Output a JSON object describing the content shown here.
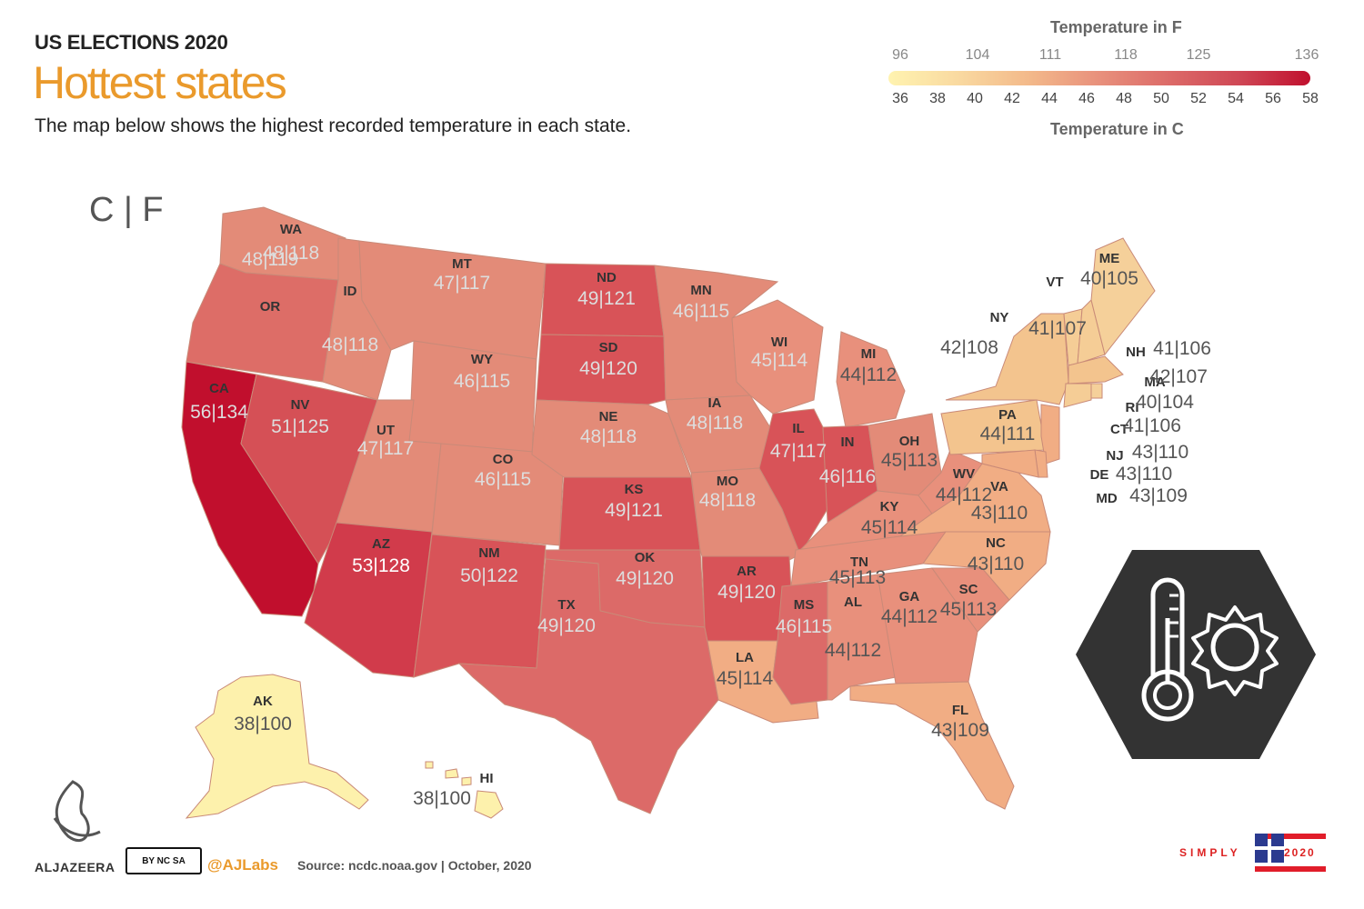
{
  "header": {
    "kicker": "US ELECTIONS 2020",
    "title": "Hottest states",
    "subtitle": "The map below shows the highest recorded temperature in each state."
  },
  "unit_toggle": "C | F",
  "legend": {
    "f_title": "Temperature in F",
    "c_title": "Temperature in C",
    "f_ticks": [
      "96",
      "104",
      "111",
      "118",
      "125",
      "136"
    ],
    "c_ticks": [
      "36",
      "38",
      "40",
      "42",
      "44",
      "46",
      "48",
      "50",
      "52",
      "54",
      "56",
      "58"
    ],
    "colors": [
      "#fff3b0",
      "#f9d9a0",
      "#f3b98a",
      "#e8907c",
      "#dc6a68",
      "#cf4755",
      "#c0102e"
    ]
  },
  "states": [
    {
      "abbr": "WA",
      "value": "48|118"
    },
    {
      "abbr": "OR",
      "value": "48|119"
    },
    {
      "abbr": "CA",
      "value": "56|134"
    },
    {
      "abbr": "ID",
      "value": "48|118"
    },
    {
      "abbr": "NV",
      "value": "51|125"
    },
    {
      "abbr": "MT",
      "value": "47|117"
    },
    {
      "abbr": "WY",
      "value": "46|115"
    },
    {
      "abbr": "UT",
      "value": "47|117"
    },
    {
      "abbr": "AZ",
      "value": "53|128"
    },
    {
      "abbr": "CO",
      "value": "46|115"
    },
    {
      "abbr": "NM",
      "value": "50|122"
    },
    {
      "abbr": "ND",
      "value": "49|121"
    },
    {
      "abbr": "SD",
      "value": "49|120"
    },
    {
      "abbr": "NE",
      "value": "48|118"
    },
    {
      "abbr": "KS",
      "value": "49|121"
    },
    {
      "abbr": "OK",
      "value": "49|120"
    },
    {
      "abbr": "TX",
      "value": "49|120"
    },
    {
      "abbr": "MN",
      "value": "46|115"
    },
    {
      "abbr": "IA",
      "value": "48|118"
    },
    {
      "abbr": "MO",
      "value": "48|118"
    },
    {
      "abbr": "AR",
      "value": "49|120"
    },
    {
      "abbr": "LA",
      "value": "45|114"
    },
    {
      "abbr": "WI",
      "value": "45|114"
    },
    {
      "abbr": "IL",
      "value": "47|117"
    },
    {
      "abbr": "MI",
      "value": "44|112"
    },
    {
      "abbr": "IN",
      "value": "46|116"
    },
    {
      "abbr": "OH",
      "value": "45|113"
    },
    {
      "abbr": "KY",
      "value": "45|114"
    },
    {
      "abbr": "TN",
      "value": "45|113"
    },
    {
      "abbr": "MS",
      "value": "46|115"
    },
    {
      "abbr": "AL",
      "value": "44|112"
    },
    {
      "abbr": "GA",
      "value": "44|112"
    },
    {
      "abbr": "FL",
      "value": "43|109"
    },
    {
      "abbr": "SC",
      "value": "45|113"
    },
    {
      "abbr": "NC",
      "value": "43|110"
    },
    {
      "abbr": "VA",
      "value": "43|110"
    },
    {
      "abbr": "WV",
      "value": "44|112"
    },
    {
      "abbr": "PA",
      "value": "44|111"
    },
    {
      "abbr": "NY",
      "value": "42|108"
    },
    {
      "abbr": "VT",
      "value": "41|107"
    },
    {
      "abbr": "ME",
      "value": "40|105"
    },
    {
      "abbr": "NH",
      "value": "41|106"
    },
    {
      "abbr": "MA",
      "value": "42|107"
    },
    {
      "abbr": "RI",
      "value": "40|104"
    },
    {
      "abbr": "CT",
      "value": "41|106"
    },
    {
      "abbr": "NJ",
      "value": "43|110"
    },
    {
      "abbr": "DE",
      "value": "43|110"
    },
    {
      "abbr": "MD",
      "value": "43|109"
    },
    {
      "abbr": "AK",
      "value": "38|100"
    },
    {
      "abbr": "HI",
      "value": "38|100"
    }
  ],
  "footer": {
    "logo_text": "ALJAZEERA",
    "cc_badge": "BY NC SA",
    "handle": "@AJLabs",
    "source": "Source: ncdc.noaa.gov | October, 2020",
    "brand_text": "SIMPLY",
    "brand_year": "2020"
  },
  "icon": {
    "name": "thermometer-sun-icon"
  }
}
